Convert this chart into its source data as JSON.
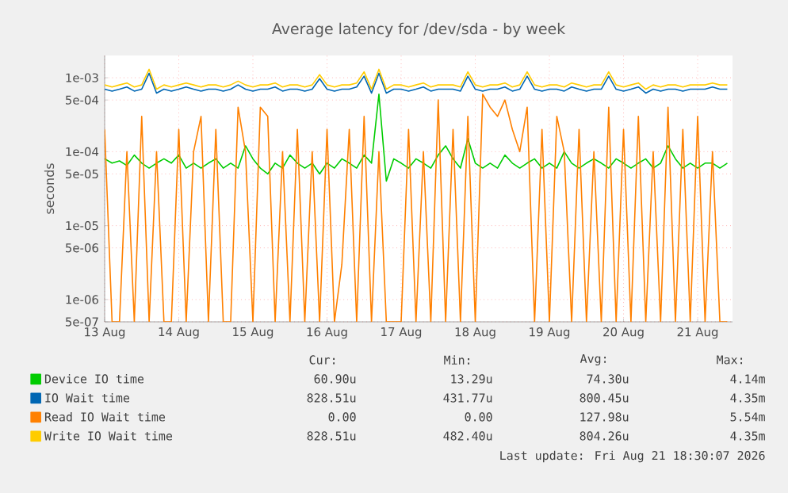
{
  "chart_data": {
    "type": "line",
    "title": "Average latency for /dev/sda - by week",
    "ylabel": "seconds",
    "x": [
      "2026-08-13T00:00",
      "2026-08-13T02:24",
      "2026-08-13T04:48",
      "2026-08-13T07:12",
      "2026-08-13T09:36",
      "2026-08-13T12:00",
      "2026-08-13T14:24",
      "2026-08-13T16:48",
      "2026-08-13T19:12",
      "2026-08-13T21:36",
      "2026-08-14T00:00",
      "2026-08-14T02:24",
      "2026-08-14T04:48",
      "2026-08-14T07:12",
      "2026-08-14T09:36",
      "2026-08-14T12:00",
      "2026-08-14T14:24",
      "2026-08-14T16:48",
      "2026-08-14T19:12",
      "2026-08-14T21:36",
      "2026-08-15T00:00",
      "2026-08-15T02:24",
      "2026-08-15T04:48",
      "2026-08-15T07:12",
      "2026-08-15T09:36",
      "2026-08-15T12:00",
      "2026-08-15T14:24",
      "2026-08-15T16:48",
      "2026-08-15T19:12",
      "2026-08-15T21:36",
      "2026-08-16T00:00",
      "2026-08-16T02:24",
      "2026-08-16T04:48",
      "2026-08-16T07:12",
      "2026-08-16T09:36",
      "2026-08-16T12:00",
      "2026-08-16T14:24",
      "2026-08-16T16:48",
      "2026-08-16T19:12",
      "2026-08-16T21:36",
      "2026-08-17T00:00",
      "2026-08-17T02:24",
      "2026-08-17T04:48",
      "2026-08-17T07:12",
      "2026-08-17T09:36",
      "2026-08-17T12:00",
      "2026-08-17T14:24",
      "2026-08-17T16:48",
      "2026-08-17T19:12",
      "2026-08-17T21:36",
      "2026-08-18T00:00",
      "2026-08-18T02:24",
      "2026-08-18T04:48",
      "2026-08-18T07:12",
      "2026-08-18T09:36",
      "2026-08-18T12:00",
      "2026-08-18T14:24",
      "2026-08-18T16:48",
      "2026-08-18T19:12",
      "2026-08-18T21:36",
      "2026-08-19T00:00",
      "2026-08-19T02:24",
      "2026-08-19T04:48",
      "2026-08-19T07:12",
      "2026-08-19T09:36",
      "2026-08-19T12:00",
      "2026-08-19T14:24",
      "2026-08-19T16:48",
      "2026-08-19T19:12",
      "2026-08-19T21:36",
      "2026-08-20T00:00",
      "2026-08-20T02:24",
      "2026-08-20T04:48",
      "2026-08-20T07:12",
      "2026-08-20T09:36",
      "2026-08-20T12:00",
      "2026-08-20T14:24",
      "2026-08-20T16:48",
      "2026-08-20T19:12",
      "2026-08-20T21:36",
      "2026-08-21T00:00",
      "2026-08-21T02:24",
      "2026-08-21T04:48",
      "2026-08-21T07:12",
      "2026-08-21T09:36"
    ],
    "xlim": [
      "2026-08-13T00:00",
      "2026-08-21T11:17"
    ],
    "xticks": [
      {
        "value": "2026-08-13",
        "label": "13 Aug"
      },
      {
        "value": "2026-08-14",
        "label": "14 Aug"
      },
      {
        "value": "2026-08-15",
        "label": "15 Aug"
      },
      {
        "value": "2026-08-16",
        "label": "16 Aug"
      },
      {
        "value": "2026-08-17",
        "label": "17 Aug"
      },
      {
        "value": "2026-08-18",
        "label": "18 Aug"
      },
      {
        "value": "2026-08-19",
        "label": "19 Aug"
      },
      {
        "value": "2026-08-20",
        "label": "20 Aug"
      },
      {
        "value": "2026-08-21",
        "label": "21 Aug"
      }
    ],
    "ylim": [
      5e-07,
      0.002
    ],
    "yticks": [
      {
        "value": 5e-07,
        "label": "5e-07"
      },
      {
        "value": 1e-06,
        "label": "1e-06"
      },
      {
        "value": 5e-06,
        "label": "5e-06"
      },
      {
        "value": 1e-05,
        "label": "1e-05"
      },
      {
        "value": 5e-05,
        "label": "5e-05"
      },
      {
        "value": 0.0001,
        "label": "1e-04"
      },
      {
        "value": 0.0005,
        "label": "5e-04"
      },
      {
        "value": 0.001,
        "label": "1e-03"
      }
    ],
    "log": "y",
    "grid": true,
    "legend": "bottom",
    "series": [
      {
        "name": "Device IO time",
        "color": "#00cc00",
        "values": [
          8e-05,
          7e-05,
          7.5e-05,
          6.5e-05,
          9e-05,
          7e-05,
          6e-05,
          7e-05,
          8e-05,
          7e-05,
          9e-05,
          6e-05,
          7e-05,
          6e-05,
          7e-05,
          8e-05,
          6e-05,
          7e-05,
          6e-05,
          0.00012,
          8e-05,
          6e-05,
          5e-05,
          7e-05,
          6e-05,
          9e-05,
          7e-05,
          6e-05,
          7e-05,
          5e-05,
          7e-05,
          6e-05,
          8e-05,
          7e-05,
          6e-05,
          9e-05,
          7e-05,
          0.0006,
          4e-05,
          8e-05,
          7e-05,
          6e-05,
          8e-05,
          7e-05,
          6e-05,
          9e-05,
          0.00012,
          8e-05,
          6e-05,
          0.00015,
          7e-05,
          6e-05,
          7e-05,
          6e-05,
          9e-05,
          7e-05,
          6e-05,
          7e-05,
          8e-05,
          6e-05,
          7e-05,
          6e-05,
          0.0001,
          7e-05,
          6e-05,
          7e-05,
          8e-05,
          7e-05,
          6e-05,
          8e-05,
          7e-05,
          6e-05,
          7e-05,
          8e-05,
          6e-05,
          7e-05,
          0.00012,
          8e-05,
          6e-05,
          7e-05,
          6e-05,
          7e-05,
          7e-05,
          6e-05,
          7e-05
        ]
      },
      {
        "name": "IO Wait time",
        "color": "#0066b3",
        "values": [
          0.0007,
          0.00066,
          0.0007,
          0.00075,
          0.00066,
          0.0007,
          0.00115,
          0.00062,
          0.0007,
          0.00066,
          0.0007,
          0.00075,
          0.0007,
          0.00066,
          0.0007,
          0.0007,
          0.00066,
          0.0007,
          0.0008,
          0.0007,
          0.00066,
          0.0007,
          0.0007,
          0.00075,
          0.00066,
          0.0007,
          0.0007,
          0.00066,
          0.0007,
          0.00097,
          0.0007,
          0.00066,
          0.0007,
          0.0007,
          0.00075,
          0.00105,
          0.00062,
          0.00115,
          0.00062,
          0.0007,
          0.0007,
          0.00066,
          0.0007,
          0.00075,
          0.00066,
          0.0007,
          0.0007,
          0.0007,
          0.00066,
          0.00105,
          0.0007,
          0.00066,
          0.0007,
          0.0007,
          0.00075,
          0.00066,
          0.0007,
          0.00105,
          0.0007,
          0.00066,
          0.0007,
          0.0007,
          0.00066,
          0.00075,
          0.0007,
          0.00066,
          0.0007,
          0.0007,
          0.00105,
          0.0007,
          0.00066,
          0.0007,
          0.00075,
          0.00062,
          0.0007,
          0.00066,
          0.0007,
          0.0007,
          0.00066,
          0.0007,
          0.0007,
          0.0007,
          0.00075,
          0.0007,
          0.0007
        ]
      },
      {
        "name": "Read IO Wait time",
        "color": "#ff8000",
        "values": [
          0.0002,
          5e-07,
          5e-07,
          0.0001,
          5e-07,
          0.0003,
          5e-07,
          0.0001,
          5e-07,
          5e-07,
          0.0002,
          5e-07,
          0.0001,
          0.0003,
          5e-07,
          0.0002,
          5e-07,
          5e-07,
          0.0004,
          0.0001,
          5e-07,
          0.0004,
          0.0003,
          5e-07,
          0.0001,
          5e-07,
          0.0002,
          5e-07,
          0.0001,
          5e-07,
          0.0002,
          5e-07,
          3e-06,
          0.0002,
          5e-07,
          0.0003,
          5e-07,
          0.0001,
          5e-07,
          5e-07,
          5e-07,
          0.0002,
          5e-07,
          0.0001,
          5e-07,
          0.0005,
          5e-07,
          0.0002,
          5e-07,
          0.0003,
          5e-07,
          0.0006,
          0.0004,
          0.0003,
          0.0005,
          0.0002,
          0.0001,
          0.0004,
          5e-07,
          0.0002,
          5e-07,
          0.0003,
          0.0001,
          5e-07,
          0.0002,
          5e-07,
          0.0001,
          5e-07,
          0.0004,
          5e-07,
          0.0002,
          5e-07,
          0.0003,
          5e-07,
          0.0001,
          5e-07,
          0.0004,
          5e-07,
          0.0002,
          5e-07,
          0.0003,
          5e-07,
          0.0001,
          5e-07,
          5e-07
        ]
      },
      {
        "name": "Write IO Wait time",
        "color": "#ffcc00",
        "values": [
          0.0008,
          0.00075,
          0.0008,
          0.00085,
          0.00075,
          0.0008,
          0.0013,
          0.0007,
          0.0008,
          0.00075,
          0.0008,
          0.00085,
          0.0008,
          0.00075,
          0.0008,
          0.0008,
          0.00075,
          0.0008,
          0.0009,
          0.0008,
          0.00075,
          0.0008,
          0.0008,
          0.00085,
          0.00075,
          0.0008,
          0.0008,
          0.00075,
          0.0008,
          0.0011,
          0.0008,
          0.00075,
          0.0008,
          0.0008,
          0.00085,
          0.0012,
          0.0007,
          0.0013,
          0.0007,
          0.0008,
          0.0008,
          0.00075,
          0.0008,
          0.00085,
          0.00075,
          0.0008,
          0.0008,
          0.0008,
          0.00075,
          0.0012,
          0.0008,
          0.00075,
          0.0008,
          0.0008,
          0.00085,
          0.00075,
          0.0008,
          0.0012,
          0.0008,
          0.00075,
          0.0008,
          0.0008,
          0.00075,
          0.00085,
          0.0008,
          0.00075,
          0.0008,
          0.0008,
          0.0012,
          0.0008,
          0.00075,
          0.0008,
          0.00085,
          0.0007,
          0.0008,
          0.00075,
          0.0008,
          0.0008,
          0.00075,
          0.0008,
          0.0008,
          0.0008,
          0.00085,
          0.0008,
          0.0008
        ]
      }
    ],
    "annotations": [
      "Cur:",
      "Min:",
      "Avg:",
      "Max:",
      "60.90u",
      "13.29u",
      "74.30u",
      "4.14m",
      "828.51u",
      "431.77u",
      "800.45u",
      "4.35m",
      "0.00",
      "0.00",
      "127.98u",
      "5.54m",
      "828.51u",
      "482.40u",
      "804.26u",
      "4.35m",
      "Last update: Fri Aug 21 18:30:07 2026"
    ]
  }
}
